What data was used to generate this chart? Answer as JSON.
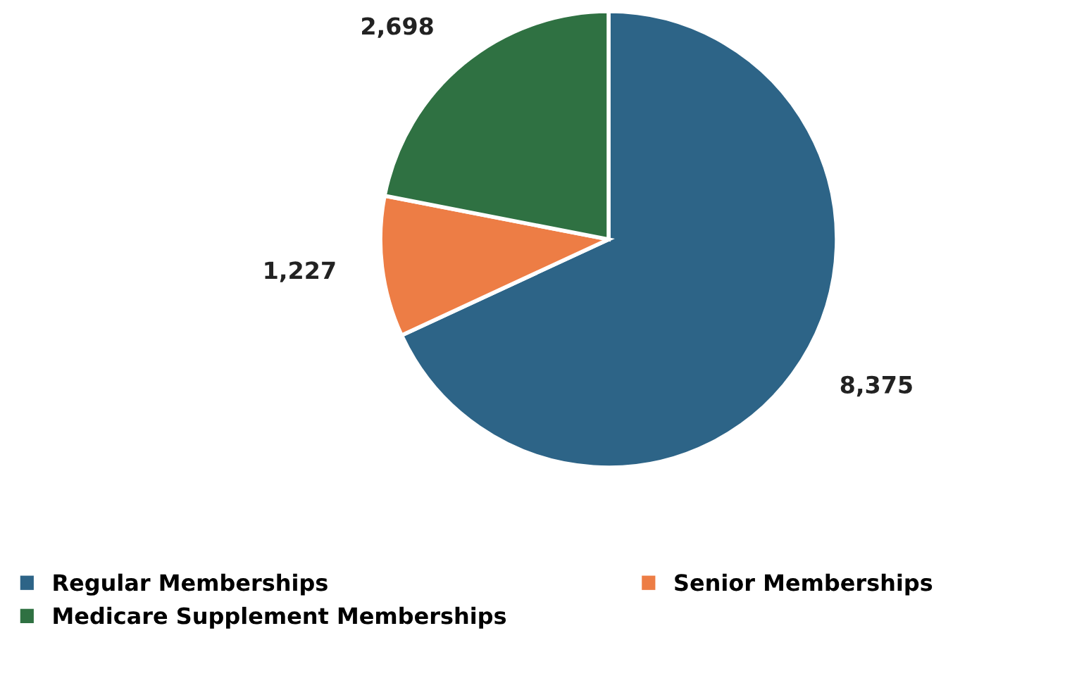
{
  "chart_data": {
    "type": "pie",
    "categories": [
      "Regular Memberships",
      "Senior Memberships",
      "Medicare Supplement Memberships"
    ],
    "values": [
      8375,
      1227,
      2698
    ],
    "colors": [
      "#2d6487",
      "#ed7d45",
      "#2f7142"
    ],
    "value_labels": [
      "8,375",
      "1,227",
      "2,698"
    ],
    "legend": "bottom"
  }
}
